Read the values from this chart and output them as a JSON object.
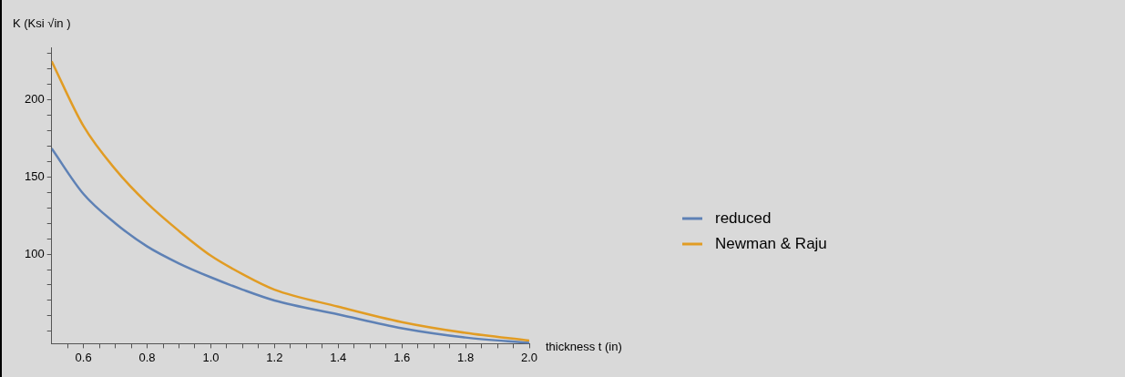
{
  "chart_data": {
    "type": "line",
    "xlabel": "thickness t (in)",
    "ylabel": "K (Ksi √in )",
    "x": [
      0.5,
      0.6,
      0.7,
      0.8,
      0.9,
      1.0,
      1.1,
      1.2,
      1.4,
      1.6,
      1.8,
      2.0
    ],
    "series": [
      {
        "name": "reduced",
        "color": "#5e81b5",
        "values": [
          168.5,
          139,
          120,
          105,
          94,
          85,
          77,
          70,
          61,
          52,
          46,
          42.5
        ]
      },
      {
        "name": "Newman & Raju",
        "color": "#e19c24",
        "values": [
          225,
          183,
          155,
          133,
          115,
          99,
          87,
          77,
          66,
          56,
          49,
          44
        ]
      }
    ],
    "xlim": [
      0.5,
      2.0
    ],
    "ylim": [
      42,
      234
    ],
    "xticks": [
      {
        "value": 0.55,
        "label": null
      },
      {
        "value": 0.6,
        "label": "0.6"
      },
      {
        "value": 0.65,
        "label": null
      },
      {
        "value": 0.7,
        "label": null
      },
      {
        "value": 0.75,
        "label": null
      },
      {
        "value": 0.8,
        "label": "0.8"
      },
      {
        "value": 0.85,
        "label": null
      },
      {
        "value": 0.9,
        "label": null
      },
      {
        "value": 0.95,
        "label": null
      },
      {
        "value": 1.0,
        "label": "1.0"
      },
      {
        "value": 1.05,
        "label": null
      },
      {
        "value": 1.1,
        "label": null
      },
      {
        "value": 1.15,
        "label": null
      },
      {
        "value": 1.2,
        "label": "1.2"
      },
      {
        "value": 1.25,
        "label": null
      },
      {
        "value": 1.3,
        "label": null
      },
      {
        "value": 1.35,
        "label": null
      },
      {
        "value": 1.4,
        "label": "1.4"
      },
      {
        "value": 1.45,
        "label": null
      },
      {
        "value": 1.5,
        "label": null
      },
      {
        "value": 1.55,
        "label": null
      },
      {
        "value": 1.6,
        "label": "1.6"
      },
      {
        "value": 1.65,
        "label": null
      },
      {
        "value": 1.7,
        "label": null
      },
      {
        "value": 1.75,
        "label": null
      },
      {
        "value": 1.8,
        "label": "1.8"
      },
      {
        "value": 1.85,
        "label": null
      },
      {
        "value": 1.9,
        "label": null
      },
      {
        "value": 1.95,
        "label": null
      },
      {
        "value": 2.0,
        "label": "2.0"
      }
    ],
    "yticks": [
      {
        "value": 50,
        "label": null
      },
      {
        "value": 60,
        "label": null
      },
      {
        "value": 70,
        "label": null
      },
      {
        "value": 80,
        "label": null
      },
      {
        "value": 90,
        "label": null
      },
      100,
      {
        "value": 110,
        "label": null
      },
      {
        "value": 120,
        "label": null
      },
      {
        "value": 130,
        "label": null
      },
      {
        "value": 140,
        "label": null
      },
      150,
      {
        "value": 160,
        "label": null
      },
      {
        "value": 170,
        "label": null
      },
      {
        "value": 180,
        "label": null
      },
      {
        "value": 190,
        "label": null
      },
      200,
      {
        "value": 210,
        "label": null
      },
      {
        "value": 220,
        "label": null
      },
      {
        "value": 230,
        "label": null
      }
    ],
    "grid": false,
    "legend": "right",
    "marker": "none",
    "line_style": "solid"
  }
}
